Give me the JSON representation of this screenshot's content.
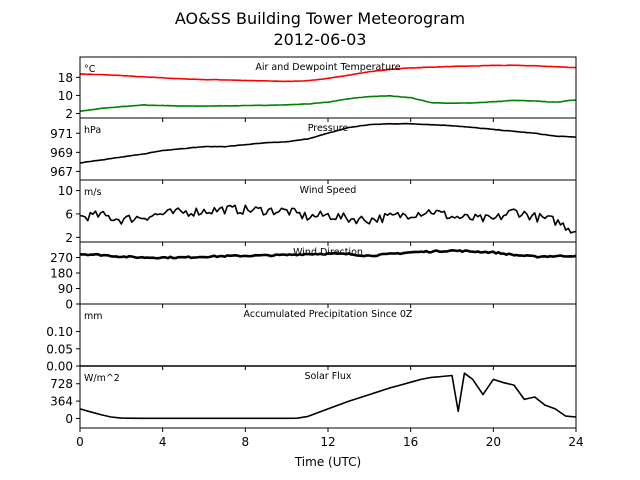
{
  "figure": {
    "title_line1": "AO&SS Building Tower Meteorogram",
    "title_line2": "2012-06-03",
    "xlabel": "Time (UTC)"
  },
  "chart_data": [
    {
      "id": "temp",
      "type": "line",
      "title": "Air and Dewpoint Temperature",
      "unit": "°C",
      "ylim": [
        0,
        27
      ],
      "yticks": [
        2,
        10,
        18
      ],
      "xlim": [
        0,
        24
      ],
      "series": [
        {
          "color": "#ff0000",
          "x": [
            0,
            1,
            2,
            3,
            4,
            5,
            6,
            7,
            8,
            9,
            10,
            11,
            12,
            13,
            14,
            15,
            16,
            17,
            18,
            19,
            20,
            21,
            22,
            23,
            24
          ],
          "y": [
            19.5,
            19.2,
            18.8,
            18.2,
            17.8,
            17.3,
            17.0,
            16.9,
            16.6,
            16.4,
            16.2,
            16.5,
            17.5,
            19.0,
            20.5,
            21.5,
            22.2,
            22.5,
            22.8,
            23.0,
            23.3,
            23.3,
            23.1,
            22.7,
            22.3
          ]
        },
        {
          "color": "#008000",
          "x": [
            0,
            1,
            2,
            3,
            4,
            5,
            6,
            7,
            8,
            9,
            10,
            11,
            12,
            13,
            14,
            15,
            16,
            17,
            18,
            19,
            20,
            21,
            22,
            23,
            24
          ],
          "y": [
            3.0,
            4.2,
            5.0,
            5.8,
            5.5,
            5.3,
            5.3,
            5.4,
            5.5,
            5.6,
            5.8,
            6.2,
            7.0,
            8.5,
            9.5,
            9.8,
            9.0,
            6.8,
            6.5,
            6.7,
            7.2,
            7.8,
            7.5,
            7.0,
            8.0
          ]
        }
      ]
    },
    {
      "id": "pressure",
      "type": "line",
      "title": "Pressure",
      "unit": "hPa",
      "ylim": [
        966.1,
        972.6
      ],
      "yticks": [
        967,
        969,
        971
      ],
      "xlim": [
        0,
        24
      ],
      "series": [
        {
          "color": "#000000",
          "x": [
            0,
            1,
            2,
            3,
            4,
            5,
            6,
            7,
            8,
            9,
            10,
            11,
            12,
            13,
            14,
            15,
            16,
            17,
            18,
            19,
            20,
            21,
            22,
            23,
            24
          ],
          "y": [
            967.9,
            968.2,
            968.5,
            968.8,
            969.2,
            969.4,
            969.6,
            969.6,
            969.8,
            970.0,
            970.1,
            970.4,
            971.0,
            971.6,
            971.9,
            972.0,
            972.0,
            971.9,
            971.8,
            971.6,
            971.4,
            971.2,
            971.0,
            970.7,
            970.6
          ]
        }
      ]
    },
    {
      "id": "wind_speed",
      "type": "line",
      "title": "Wind Speed",
      "unit": "m/s",
      "ylim": [
        1.2,
        11.8
      ],
      "yticks": [
        2,
        6,
        10
      ],
      "xlim": [
        0,
        24
      ],
      "series": [
        {
          "color": "#000000",
          "x": [
            0,
            1,
            2,
            3,
            4,
            5,
            6,
            7,
            8,
            9,
            10,
            11,
            12,
            13,
            14,
            15,
            16,
            17,
            18,
            19,
            20,
            21,
            22,
            23,
            24
          ],
          "y": [
            5.5,
            5.8,
            5.0,
            5.5,
            6.0,
            6.3,
            6.5,
            6.8,
            6.7,
            6.6,
            6.5,
            5.5,
            5.8,
            5.2,
            5.0,
            5.5,
            6.0,
            6.5,
            5.5,
            5.2,
            5.0,
            6.5,
            5.5,
            4.8,
            3.0
          ]
        }
      ]
    },
    {
      "id": "wind_dir",
      "type": "line",
      "title": "Wind Direction",
      "ylim": [
        0,
        360
      ],
      "yticks": [
        0,
        90,
        180,
        270
      ],
      "xlim": [
        0,
        24
      ],
      "series": [
        {
          "color": "#000000",
          "x": [
            0,
            1,
            2,
            3,
            4,
            5,
            6,
            7,
            8,
            9,
            10,
            11,
            12,
            13,
            14,
            15,
            16,
            17,
            18,
            19,
            20,
            21,
            22,
            23,
            24
          ],
          "y": [
            290,
            285,
            275,
            270,
            270,
            270,
            275,
            278,
            280,
            282,
            285,
            290,
            292,
            290,
            280,
            290,
            300,
            305,
            310,
            305,
            300,
            285,
            275,
            278,
            280
          ]
        }
      ]
    },
    {
      "id": "precip",
      "type": "line",
      "title": "Accumulated Precipitation Since 0Z",
      "unit": "mm",
      "ylim": [
        0,
        0.18
      ],
      "yticks": [
        0.0,
        0.05,
        0.1
      ],
      "ytick_labels": [
        "0.00",
        "0.05",
        "0.10"
      ],
      "xlim": [
        0,
        24
      ],
      "series": [
        {
          "color": "#000000",
          "x": [
            0,
            24
          ],
          "y": [
            0,
            0
          ]
        }
      ]
    },
    {
      "id": "solar",
      "type": "line",
      "title": "Solar Flux",
      "unit": "W/m^2",
      "ylim": [
        -200,
        1100
      ],
      "yticks": [
        0,
        364,
        728
      ],
      "xlim": [
        0,
        24
      ],
      "xticks": [
        0,
        4,
        8,
        12,
        16,
        20,
        24
      ],
      "series": [
        {
          "color": "#000000",
          "x": [
            0,
            0.5,
            1,
            1.5,
            2,
            3,
            4,
            5,
            6,
            7,
            8,
            9,
            10,
            10.5,
            11,
            12,
            13,
            14,
            15,
            15.5,
            16,
            16.5,
            17,
            17.5,
            18,
            18.3,
            18.6,
            19,
            19.5,
            20,
            20.5,
            21,
            21.5,
            22,
            22.5,
            23,
            23.5,
            24
          ],
          "y": [
            200,
            140,
            80,
            30,
            8,
            3,
            3,
            3,
            3,
            3,
            3,
            3,
            3,
            5,
            40,
            200,
            360,
            500,
            640,
            700,
            760,
            820,
            860,
            880,
            900,
            150,
            950,
            820,
            500,
            820,
            750,
            700,
            400,
            450,
            280,
            200,
            50,
            30
          ]
        }
      ]
    }
  ]
}
